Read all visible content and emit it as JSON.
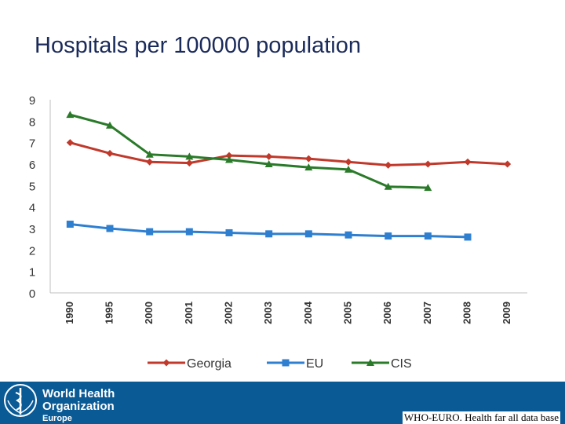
{
  "slide": {
    "title": "Hospitals per 100000 population"
  },
  "chart_data": {
    "type": "line",
    "title": "",
    "xlabel": "",
    "ylabel": "",
    "categories": [
      "1990",
      "1995",
      "2000",
      "2001",
      "2002",
      "2003",
      "2004",
      "2005",
      "2006",
      "2007",
      "2008",
      "2009"
    ],
    "ylim": [
      0,
      9
    ],
    "yticks": [
      "0",
      "1",
      "2",
      "3",
      "4",
      "5",
      "6",
      "7",
      "8",
      "9"
    ],
    "grid": false,
    "legend_position": "bottom",
    "series": [
      {
        "name": "Georgia",
        "color": "#c0392b",
        "marker": "diamond",
        "values": [
          7.0,
          6.5,
          6.1,
          6.05,
          6.4,
          6.35,
          6.25,
          6.1,
          5.95,
          6.0,
          6.1,
          6.0
        ]
      },
      {
        "name": "EU",
        "color": "#2e7fd0",
        "marker": "square",
        "values": [
          3.2,
          3.0,
          2.85,
          2.85,
          2.8,
          2.75,
          2.75,
          2.7,
          2.65,
          2.65,
          2.6,
          null
        ]
      },
      {
        "name": "CIS",
        "color": "#2a7a2a",
        "marker": "triangle",
        "values": [
          8.3,
          7.8,
          6.45,
          6.35,
          6.2,
          6.0,
          5.85,
          5.75,
          4.95,
          4.9,
          null,
          null
        ]
      }
    ]
  },
  "footer": {
    "org_line1": "World Health",
    "org_line2": "Organization",
    "org_line3": "Europe",
    "source": "WHO-EURO. Health far all data base"
  },
  "colors": {
    "footer_bg": "#0a5a96",
    "title": "#1a2a5a"
  }
}
